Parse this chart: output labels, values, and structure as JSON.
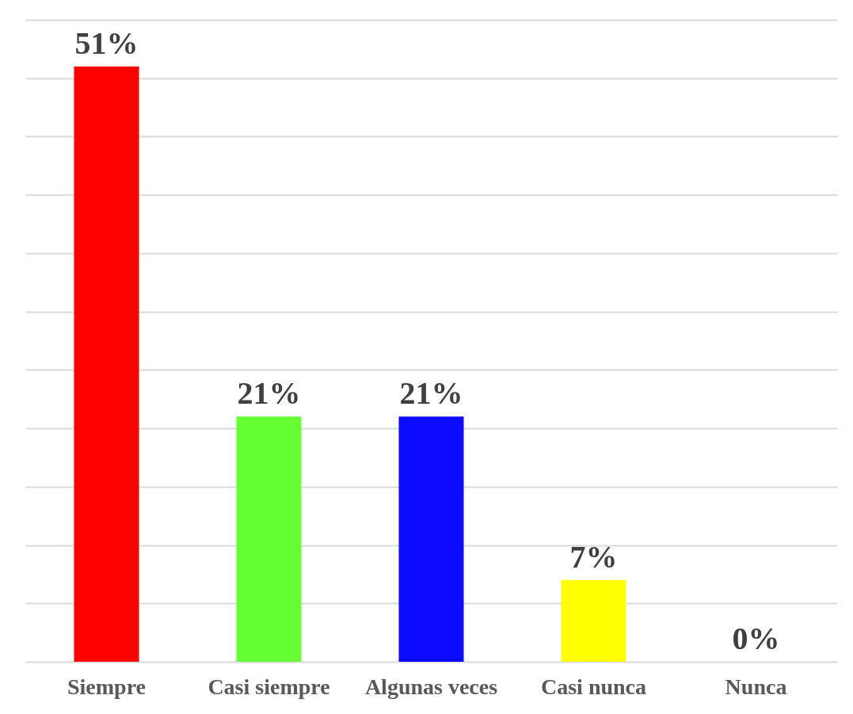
{
  "chart_data": {
    "type": "bar",
    "categories": [
      "Siempre",
      "Casi siempre",
      "Algunas veces",
      "Casi nunca",
      "Nunca"
    ],
    "values": [
      51,
      21,
      21,
      7,
      0
    ],
    "value_labels": [
      "51%",
      "21%",
      "21%",
      "7%",
      "0%"
    ],
    "colors": [
      "#ff0000",
      "#66ff33",
      "#0a0aff",
      "#ffff00",
      "#bb00bb"
    ],
    "ylim": [
      0,
      55
    ],
    "yticks": [
      {
        "value": 0,
        "label": null
      },
      {
        "value": 5,
        "label": null
      },
      {
        "value": 10,
        "label": null
      },
      {
        "value": 15,
        "label": null
      },
      {
        "value": 20,
        "label": null
      },
      {
        "value": 25,
        "label": null
      },
      {
        "value": 30,
        "label": null
      },
      {
        "value": 35,
        "label": null
      },
      {
        "value": 40,
        "label": null
      },
      {
        "value": 45,
        "label": null
      },
      {
        "value": 50,
        "label": null
      },
      {
        "value": 55,
        "label": null
      }
    ],
    "grid": "y",
    "legend": false
  }
}
